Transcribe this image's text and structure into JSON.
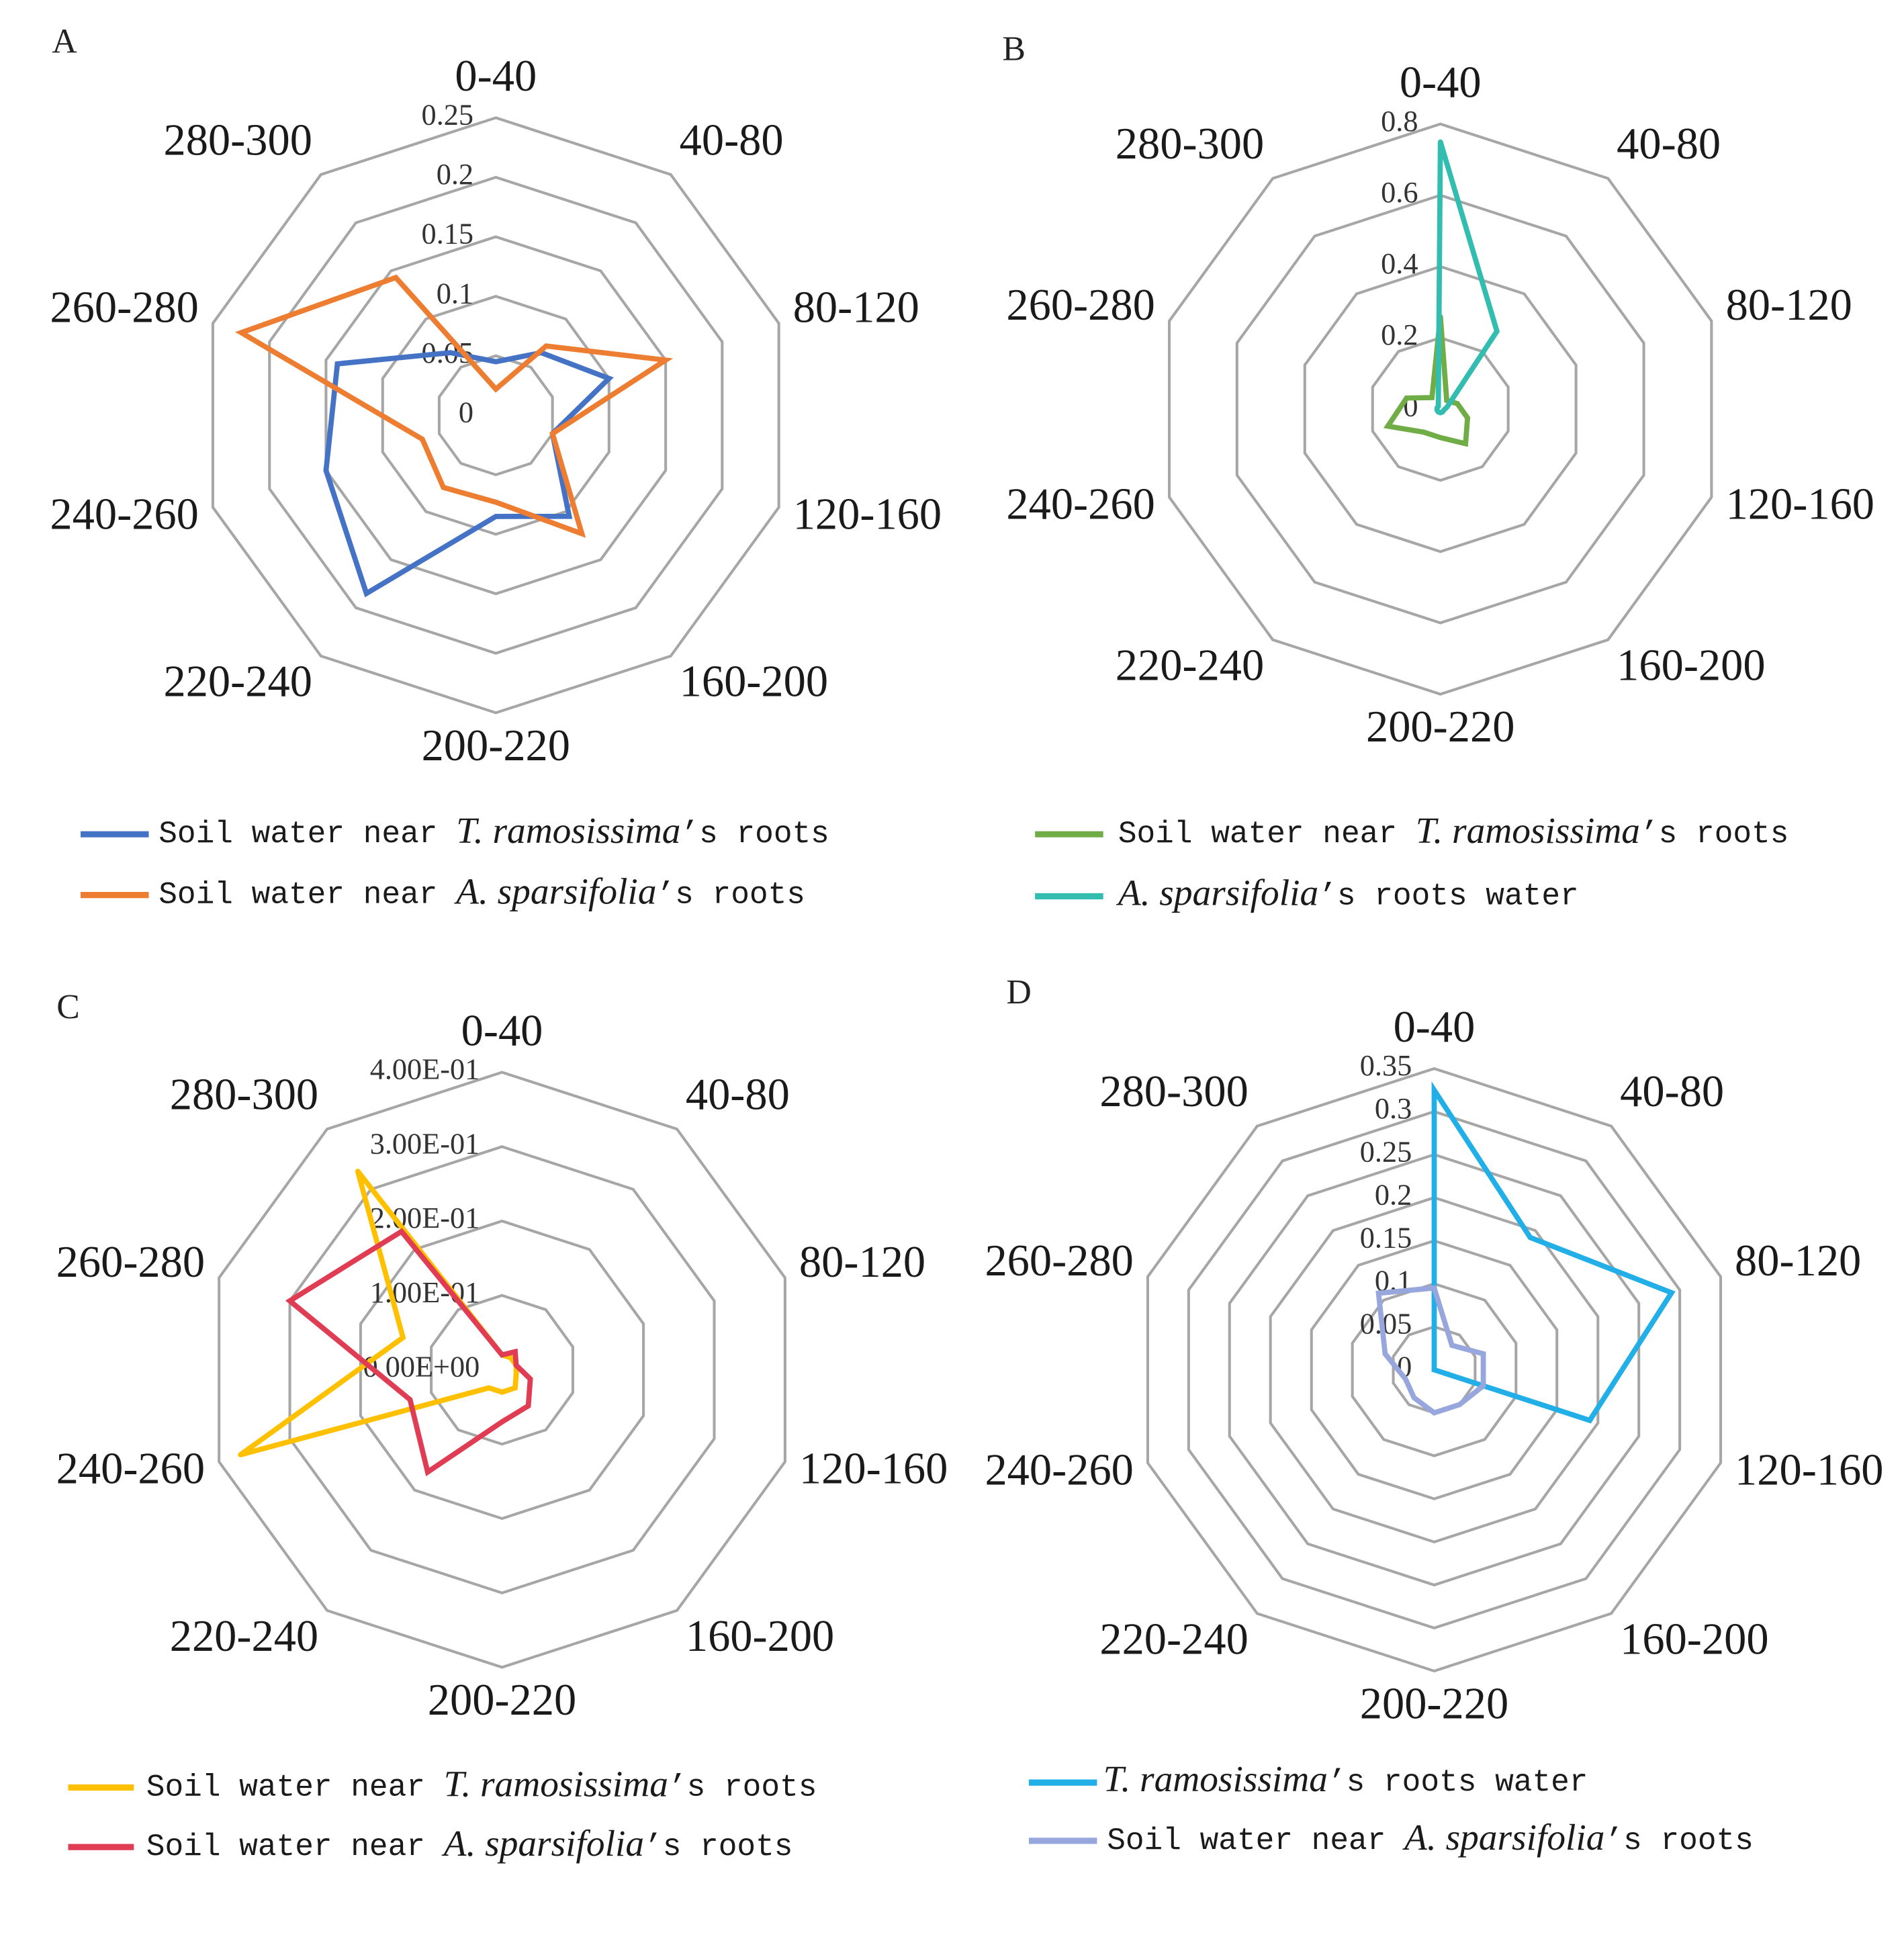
{
  "chart_data": [
    {
      "panel": "A",
      "type": "radar",
      "categories": [
        "0-40",
        "40-80",
        "80-120",
        "120-160",
        "160-200",
        "200-220",
        "220-240",
        "240-260",
        "260-280",
        "280-300"
      ],
      "r_range": [
        0,
        0.25
      ],
      "ticks": [
        0,
        0.05,
        0.1,
        0.15,
        0.2,
        0.25
      ],
      "tick_labels": [
        "0",
        "0.05",
        "0.1",
        "0.15",
        "0.2",
        "0.25"
      ],
      "series": [
        {
          "name_prefix": "Soil water near ",
          "name_species": "T. ramosissima",
          "name_suffix": "’s roots",
          "color": "#4472C4",
          "values": [
            0.045,
            0.065,
            0.1,
            0.05,
            0.105,
            0.085,
            0.185,
            0.15,
            0.14,
            0.065
          ]
        },
        {
          "name_prefix": "Soil water near ",
          "name_species": "A. sparsifolia",
          "name_suffix": "’s roots",
          "color": "#ED7D31",
          "values": [
            0.022,
            0.072,
            0.15,
            0.05,
            0.123,
            0.073,
            0.075,
            0.065,
            0.225,
            0.143
          ]
        }
      ]
    },
    {
      "panel": "B",
      "type": "radar",
      "categories": [
        "0-40",
        "40-80",
        "80-120",
        "120-160",
        "160-200",
        "200-220",
        "220-240",
        "240-260",
        "260-280",
        "280-300"
      ],
      "r_range": [
        0,
        0.8
      ],
      "ticks": [
        0,
        0.2,
        0.4,
        0.6,
        0.8
      ],
      "tick_labels": [
        "0",
        "0.2",
        "0.4",
        "0.6",
        "0.8"
      ],
      "series": [
        {
          "name_prefix": "Soil water near ",
          "name_species": "T. ramosissima",
          "name_suffix": "’s roots",
          "color": "#70AD47",
          "values": [
            0.26,
            0.03,
            0.05,
            0.08,
            0.12,
            0.08,
            0.08,
            0.155,
            0.1,
            0.04
          ]
        },
        {
          "name_species": "A. sparsifolia",
          "name_suffix": "’s roots water",
          "color": "#32BDB0",
          "values": [
            0.75,
            0.27,
            0.02,
            0.01,
            0.01,
            0.01,
            0.01,
            0.01,
            0.01,
            0.01
          ]
        }
      ]
    },
    {
      "panel": "C",
      "type": "radar",
      "categories": [
        "0-40",
        "40-80",
        "80-120",
        "120-160",
        "160-200",
        "200-220",
        "220-240",
        "240-260",
        "260-280",
        "280-300"
      ],
      "r_range": [
        0,
        0.4
      ],
      "ticks": [
        0,
        0.1,
        0.2,
        0.3,
        0.4
      ],
      "tick_labels": [
        "0.00E+00",
        "1.00E-01",
        "2.00E-01",
        "3.00E-01",
        "4.00E-01"
      ],
      "series": [
        {
          "name_prefix": "Soil water near ",
          "name_species": "T. ramosissima",
          "name_suffix": "’s roots",
          "color": "#FFC000",
          "values": [
            0.02,
            0.02,
            0.02,
            0.02,
            0.03,
            0.03,
            0.03,
            0.37,
            0.14,
            0.33
          ]
        },
        {
          "name_prefix": "Soil water near ",
          "name_species": "A. sparsifolia",
          "name_suffix": "’s roots",
          "color": "#E03C54",
          "values": [
            0.02,
            0.03,
            0.02,
            0.04,
            0.06,
            0.07,
            0.17,
            0.13,
            0.3,
            0.23
          ]
        }
      ]
    },
    {
      "panel": "D",
      "type": "radar",
      "categories": [
        "0-40",
        "40-80",
        "80-120",
        "120-160",
        "160-200",
        "200-220",
        "220-240",
        "240-260",
        "260-280",
        "280-300"
      ],
      "r_range": [
        0,
        0.35
      ],
      "ticks": [
        0,
        0.05,
        0.1,
        0.15,
        0.2,
        0.25,
        0.3,
        0.35
      ],
      "tick_labels": [
        "0",
        "0.05",
        "0.1",
        "0.15",
        "0.2",
        "0.25",
        "0.3",
        "0.35"
      ],
      "series": [
        {
          "name_species": "T. ramosissima",
          "name_suffix": "’s roots water",
          "color": "#22AEE6",
          "values": [
            0.325,
            0.19,
            0.29,
            0.19,
            0,
            0,
            0,
            0,
            0,
            0
          ]
        },
        {
          "name_prefix": "Soil water near ",
          "name_species": "A. sparsifolia",
          "name_suffix": "’s roots",
          "color": "#97A6DC",
          "values": [
            0.095,
            0.035,
            0.06,
            0.06,
            0.05,
            0.05,
            0.04,
            0.035,
            0.06,
            0.11
          ]
        }
      ]
    }
  ]
}
